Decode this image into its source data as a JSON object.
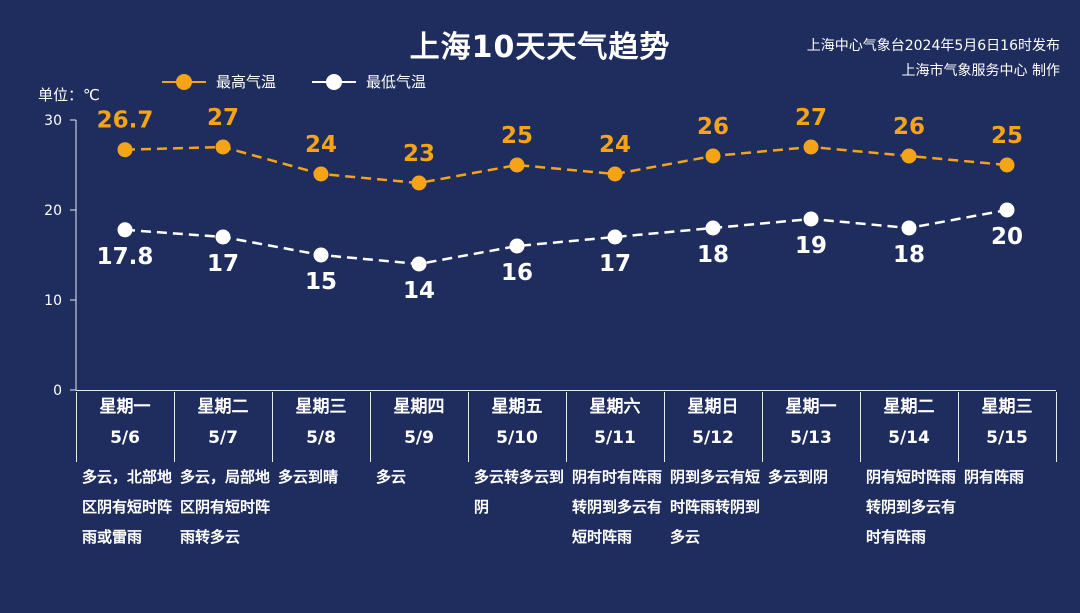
{
  "header": {
    "title": "上海10天天气趋势",
    "issuer_line1": "上海中心气象台2024年5月6日16时发布",
    "issuer_line2": "上海市气象服务中心 制作"
  },
  "unit_label": "单位：℃",
  "colors": {
    "background": "#1f2d5e",
    "high": "#f5a418",
    "low": "#ffffff",
    "axis": "#e6e9f2"
  },
  "chart_data": {
    "type": "line",
    "title": "上海10天天气趋势",
    "ylabel": "单位：℃",
    "ylim": [
      0,
      30
    ],
    "yticks": [
      0,
      10,
      20,
      30
    ],
    "grid": false,
    "legend": "top-left",
    "categories": [
      "5/6",
      "5/7",
      "5/8",
      "5/9",
      "5/10",
      "5/11",
      "5/12",
      "5/13",
      "5/14",
      "5/15"
    ],
    "series": [
      {
        "name": "最高气温",
        "color": "#f5a418",
        "values": [
          26.7,
          27,
          24,
          23,
          25,
          24,
          26,
          27,
          26,
          25
        ]
      },
      {
        "name": "最低气温",
        "color": "#ffffff",
        "values": [
          17.8,
          17,
          15,
          14,
          16,
          17,
          18,
          19,
          18,
          20
        ]
      }
    ]
  },
  "days": [
    {
      "weekday": "星期一",
      "date": "5/6",
      "weather": "多云，北部地区阴有短时阵雨或雷雨"
    },
    {
      "weekday": "星期二",
      "date": "5/7",
      "weather": "多云，局部地区阴有短时阵雨转多云"
    },
    {
      "weekday": "星期三",
      "date": "5/8",
      "weather": "多云到晴"
    },
    {
      "weekday": "星期四",
      "date": "5/9",
      "weather": "多云"
    },
    {
      "weekday": "星期五",
      "date": "5/10",
      "weather": "多云转多云到阴"
    },
    {
      "weekday": "星期六",
      "date": "5/11",
      "weather": "阴有时有阵雨转阴到多云有短时阵雨"
    },
    {
      "weekday": "星期日",
      "date": "5/12",
      "weather": "阴到多云有短时阵雨转阴到多云"
    },
    {
      "weekday": "星期一",
      "date": "5/13",
      "weather": "多云到阴"
    },
    {
      "weekday": "星期二",
      "date": "5/14",
      "weather": "阴有短时阵雨转阴到多云有时有阵雨"
    },
    {
      "weekday": "星期三",
      "date": "5/15",
      "weather": "阴有阵雨"
    }
  ]
}
